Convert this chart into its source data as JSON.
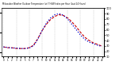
{
  "title": "Milwaukee Weather Outdoor Temperature (vs) THSW Index per Hour (Last 24 Hours)",
  "hours": [
    0,
    1,
    2,
    3,
    4,
    5,
    6,
    7,
    8,
    9,
    10,
    11,
    12,
    13,
    14,
    15,
    16,
    17,
    18,
    19,
    20,
    21,
    22,
    23
  ],
  "temp": [
    32,
    31,
    31,
    30,
    30,
    30,
    31,
    34,
    42,
    52,
    60,
    66,
    70,
    72,
    71,
    68,
    63,
    57,
    50,
    44,
    40,
    37,
    35,
    33
  ],
  "thsw": [
    28,
    27,
    26,
    26,
    25,
    25,
    26,
    30,
    42,
    58,
    72,
    82,
    88,
    90,
    87,
    80,
    70,
    60,
    50,
    42,
    37,
    34,
    31,
    29
  ],
  "temp_color": "#cc0000",
  "thsw_color": "#0000cc",
  "bg_color": "#ffffff",
  "grid_color": "#aaaaaa",
  "grid_hours": [
    0,
    3,
    6,
    9,
    12,
    15,
    18,
    21,
    23
  ],
  "ylim_left": [
    20,
    80
  ],
  "ylim_right": [
    10,
    100
  ],
  "yticks_right": [
    10,
    20,
    30,
    40,
    50,
    60,
    70,
    80,
    90,
    100
  ],
  "xlim": [
    -0.5,
    23.5
  ]
}
